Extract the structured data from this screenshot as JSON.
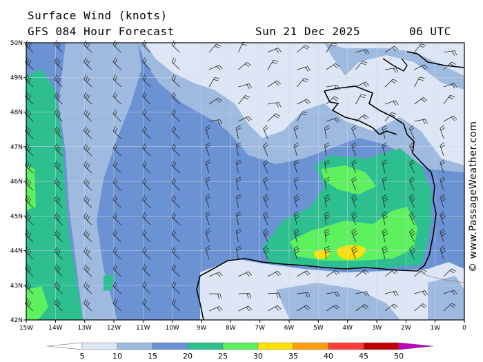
{
  "header": {
    "title": "Surface Wind (knots)",
    "subtitle": "GFS 084 Hour Forecast",
    "date": "Sun 21 Dec 2025",
    "time": "06 UTC"
  },
  "copyright": "© www.PassageWeather.com",
  "map": {
    "lon_range": [
      -15,
      0
    ],
    "lat_range": [
      42,
      50
    ],
    "lon_labels": [
      "15W",
      "14W",
      "13W",
      "12W",
      "11W",
      "10W",
      "9W",
      "8W",
      "7W",
      "6W",
      "5W",
      "4W",
      "3W",
      "2W",
      "1W",
      "0"
    ],
    "lat_labels": [
      "42N",
      "43N",
      "44N",
      "45N",
      "46N",
      "47N",
      "48N",
      "49N",
      "50N"
    ]
  },
  "legend": {
    "labels": [
      "5",
      "10",
      "15",
      "20",
      "25",
      "30",
      "35",
      "40",
      "45",
      "50"
    ],
    "colors": [
      "#ffffff",
      "#dde6f5",
      "#9fbadf",
      "#6b92d2",
      "#2dbf8f",
      "#5ef05e",
      "#ffe000",
      "#ff9f10",
      "#ff3b3b",
      "#c00000",
      "#c000c0"
    ]
  },
  "palette": {
    "water_bg": "#6b92d2",
    "light": "#dde6f5",
    "mid": "#9fbadf",
    "teal": "#2dbf8f",
    "green": "#5ef05e",
    "yellow": "#ffe000"
  }
}
